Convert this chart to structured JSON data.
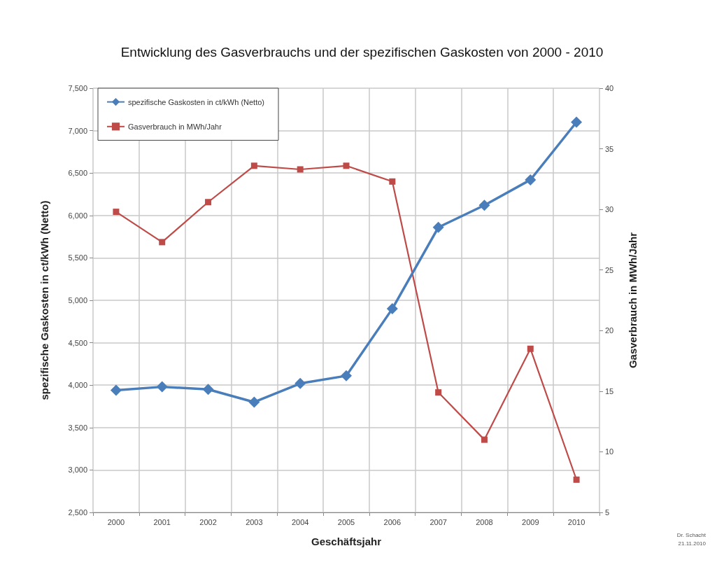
{
  "chart_data": {
    "type": "line",
    "title": "Entwicklung des Gasverbrauchs und der spezifischen Gaskosten von 2000 - 2010",
    "xlabel": "Geschäftsjahr",
    "ylabel": "spezifische Gaskosten in ct/kWh (Netto)",
    "y2label": "Gasverbrauch in MWh/Jahr",
    "annotations": [
      "Dr. Schacht",
      "21.11.2010"
    ],
    "categories": [
      "2000",
      "2001",
      "2002",
      "2003",
      "2004",
      "2005",
      "2006",
      "2007",
      "2008",
      "2009",
      "2010"
    ],
    "series": [
      {
        "name": "spezifische Gaskosten in ct/kWh (Netto)",
        "color": "#4a7ebb",
        "marker": "diamond",
        "values": [
          3940,
          3980,
          3950,
          3800,
          4020,
          4110,
          4900,
          5860,
          6120,
          6420,
          7100
        ]
      },
      {
        "name": "Gasverbrauch in MWh/Jahr",
        "color": "#be4b48",
        "marker": "square",
        "axis": "y2",
        "values": [
          29.8,
          27.3,
          30.6,
          33.6,
          33.3,
          33.6,
          32.3,
          14.9,
          11.0,
          18.5,
          7.7
        ]
      }
    ],
    "ylim": [
      2500,
      7500
    ],
    "yticks": [
      {
        "value": 2500,
        "label": "2,500"
      },
      {
        "value": 3000,
        "label": "3,000"
      },
      {
        "value": 3500,
        "label": "3,500"
      },
      {
        "value": 4000,
        "label": "4,000"
      },
      {
        "value": 4500,
        "label": "4,500"
      },
      {
        "value": 5000,
        "label": "5,000"
      },
      {
        "value": 5500,
        "label": "5,500"
      },
      {
        "value": 6000,
        "label": "6,000"
      },
      {
        "value": 6500,
        "label": "6,500"
      },
      {
        "value": 7000,
        "label": "7,000"
      },
      {
        "value": 7500,
        "label": "7,500"
      }
    ],
    "y2lim": [
      5,
      40
    ],
    "y2ticks": [
      5,
      10,
      15,
      20,
      25,
      30,
      35,
      40
    ],
    "grid": true,
    "legend": "top left",
    "line_style": "solid"
  }
}
